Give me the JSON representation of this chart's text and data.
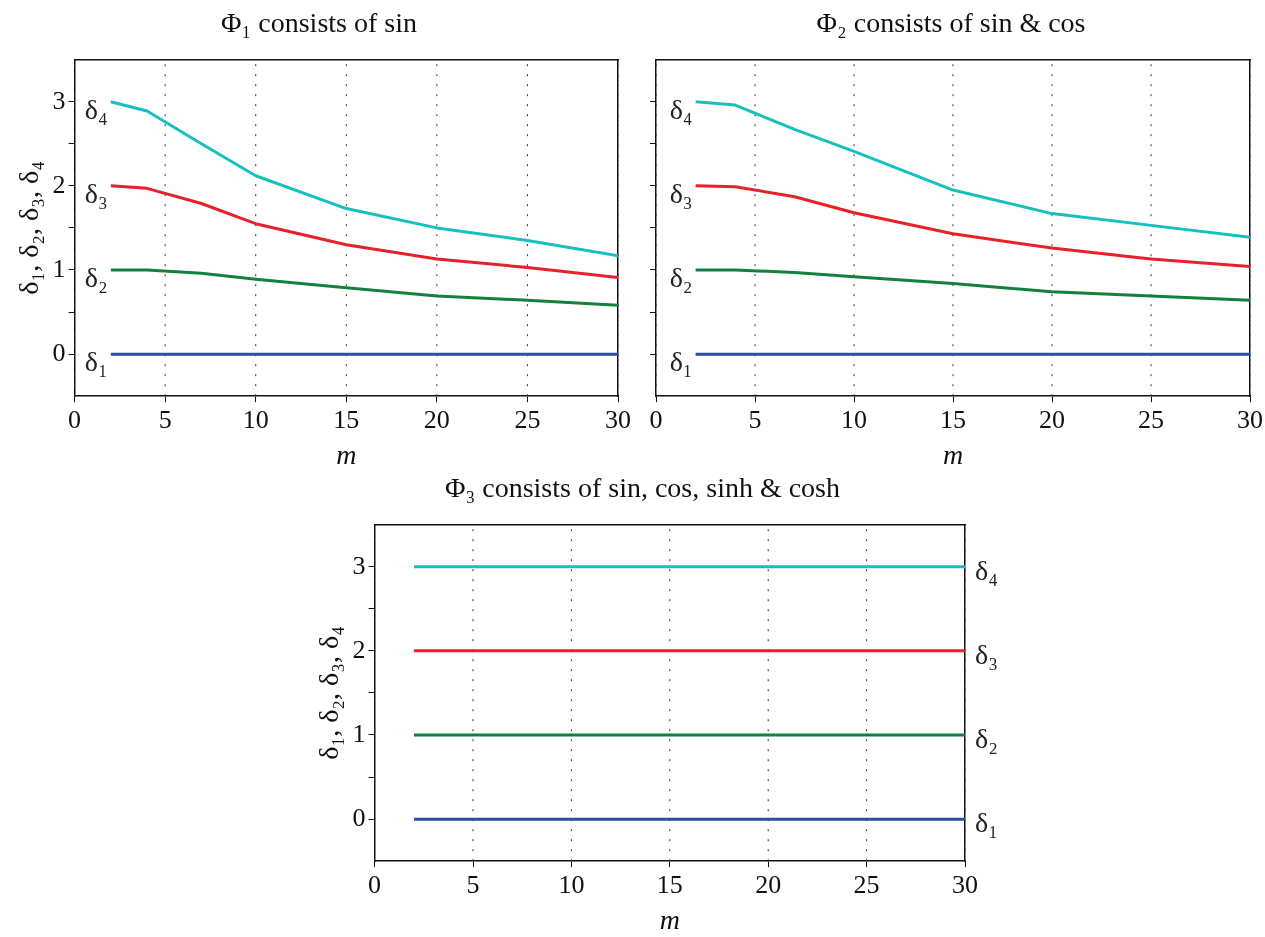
{
  "chart_data": [
    {
      "type": "line",
      "title": "Φ₁ consists of sin",
      "xlabel": "m",
      "ylabel": "δ₁, δ₂, δ₃, δ₄",
      "x": [
        2,
        4,
        7,
        10,
        15,
        20,
        25,
        30
      ],
      "xlim": [
        0,
        30
      ],
      "xticks": [
        0,
        5,
        10,
        15,
        20,
        25,
        30
      ],
      "ylim": [
        -0.5,
        3.5
      ],
      "yticks": [
        0,
        {
          "value": 0.5,
          "label": null
        },
        1,
        {
          "value": 1.5,
          "label": null
        },
        2,
        {
          "value": 2.5,
          "label": null
        },
        3
      ],
      "grid": "x",
      "series": [
        {
          "name": "δ₁",
          "color": "#2c4ea6",
          "values": [
            0,
            0,
            0,
            0,
            0,
            0,
            0,
            0
          ]
        },
        {
          "name": "δ₂",
          "color": "#13803f",
          "values": [
            1,
            1,
            0.96,
            0.89,
            0.79,
            0.69,
            0.64,
            0.58
          ]
        },
        {
          "name": "δ₃",
          "color": "#e8202a",
          "values": [
            2,
            1.97,
            1.79,
            1.55,
            1.3,
            1.13,
            1.03,
            0.91
          ]
        },
        {
          "name": "δ₄",
          "color": "#17bfbf",
          "values": [
            3,
            2.89,
            2.5,
            2.12,
            1.73,
            1.5,
            1.35,
            1.17
          ]
        }
      ]
    },
    {
      "type": "line",
      "title": "Φ₂ consists of sin & cos",
      "xlabel": "m",
      "x": [
        2,
        4,
        7,
        10,
        15,
        20,
        25,
        30
      ],
      "xlim": [
        0,
        30
      ],
      "xticks": [
        0,
        5,
        10,
        15,
        20,
        25,
        30
      ],
      "ylim": [
        -0.5,
        3.5
      ],
      "yticks": [
        0,
        {
          "value": 0.5,
          "label": null
        },
        1,
        {
          "value": 1.5,
          "label": null
        },
        2,
        {
          "value": 2.5,
          "label": null
        },
        3
      ],
      "grid": "x",
      "tick_labels": "x",
      "series": [
        {
          "name": "δ₁",
          "color": "#2c4ea6",
          "values": [
            0,
            0,
            0,
            0,
            0,
            0,
            0,
            0
          ]
        },
        {
          "name": "δ₂",
          "color": "#13803f",
          "values": [
            1,
            1,
            0.97,
            0.92,
            0.84,
            0.74,
            0.69,
            0.64
          ]
        },
        {
          "name": "δ₃",
          "color": "#e8202a",
          "values": [
            2,
            1.99,
            1.87,
            1.68,
            1.43,
            1.26,
            1.13,
            1.04
          ]
        },
        {
          "name": "δ₄",
          "color": "#17bfbf",
          "values": [
            3,
            2.96,
            2.67,
            2.41,
            1.95,
            1.67,
            1.53,
            1.39
          ]
        }
      ]
    },
    {
      "type": "line",
      "title": "Φ₃ consists of sin, cos, sinh & cosh",
      "xlabel": "m",
      "ylabel": "δ₁, δ₂, δ₃, δ₄",
      "x": [
        2,
        30
      ],
      "xlim": [
        0,
        30
      ],
      "xticks": [
        0,
        5,
        10,
        15,
        20,
        25,
        30
      ],
      "ylim": [
        -0.5,
        3.5
      ],
      "yticks": [
        0,
        {
          "value": 0.5,
          "label": null
        },
        1,
        {
          "value": 1.5,
          "label": null
        },
        2,
        {
          "value": 2.5,
          "label": null
        },
        3
      ],
      "grid": "x",
      "series": [
        {
          "name": "δ₁",
          "color": "#2c4ea6",
          "values": [
            0,
            0
          ]
        },
        {
          "name": "δ₂",
          "color": "#13803f",
          "values": [
            1,
            1
          ]
        },
        {
          "name": "δ₃",
          "color": "#e8202a",
          "values": [
            2,
            2
          ]
        },
        {
          "name": "δ₄",
          "color": "#17bfbf",
          "values": [
            3,
            3
          ]
        }
      ]
    }
  ]
}
